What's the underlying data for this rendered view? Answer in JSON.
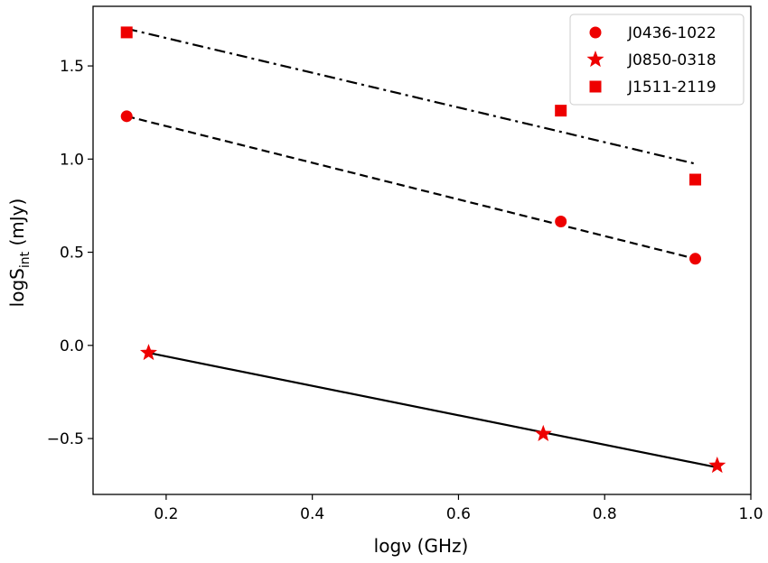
{
  "chart_data": {
    "type": "scatter",
    "xlabel": "logν (GHz)",
    "ylabel_main": "logS",
    "ylabel_sub": "int",
    "ylabel_unit": " (mJy)",
    "xlim": [
      0.1,
      1.0
    ],
    "ylim": [
      -0.8,
      1.82
    ],
    "xticks": [
      0.2,
      0.4,
      0.6,
      0.8,
      1.0
    ],
    "xtick_labels": [
      "0.2",
      "0.4",
      "0.6",
      "0.8",
      "1.0"
    ],
    "yticks": [
      -0.5,
      0.0,
      0.5,
      1.0,
      1.5
    ],
    "ytick_labels": [
      "−0.5",
      "0.0",
      "0.5",
      "1.0",
      "1.5"
    ],
    "grid": false,
    "legend_position": "top-right",
    "marker_color": "#ee0000",
    "line_color": "#000000",
    "series": [
      {
        "name": "J0436-1022",
        "marker": "circle",
        "points": [
          [
            0.146,
            1.23
          ],
          [
            0.74,
            0.665
          ],
          [
            0.924,
            0.465
          ]
        ],
        "fit_style": "dashed",
        "fit": [
          [
            0.146,
            1.23
          ],
          [
            0.924,
            0.465
          ]
        ]
      },
      {
        "name": "J0850-0318",
        "marker": "star",
        "points": [
          [
            0.176,
            -0.04
          ],
          [
            0.716,
            -0.475
          ],
          [
            0.954,
            -0.645
          ]
        ],
        "fit_style": "solid",
        "fit": [
          [
            0.176,
            -0.04
          ],
          [
            0.954,
            -0.655
          ]
        ]
      },
      {
        "name": "J1511-2119",
        "marker": "square",
        "points": [
          [
            0.146,
            1.68
          ],
          [
            0.74,
            1.26
          ],
          [
            0.924,
            0.89
          ]
        ],
        "fit_style": "dashdot",
        "fit": [
          [
            0.146,
            1.7
          ],
          [
            0.924,
            0.975
          ]
        ]
      }
    ]
  }
}
